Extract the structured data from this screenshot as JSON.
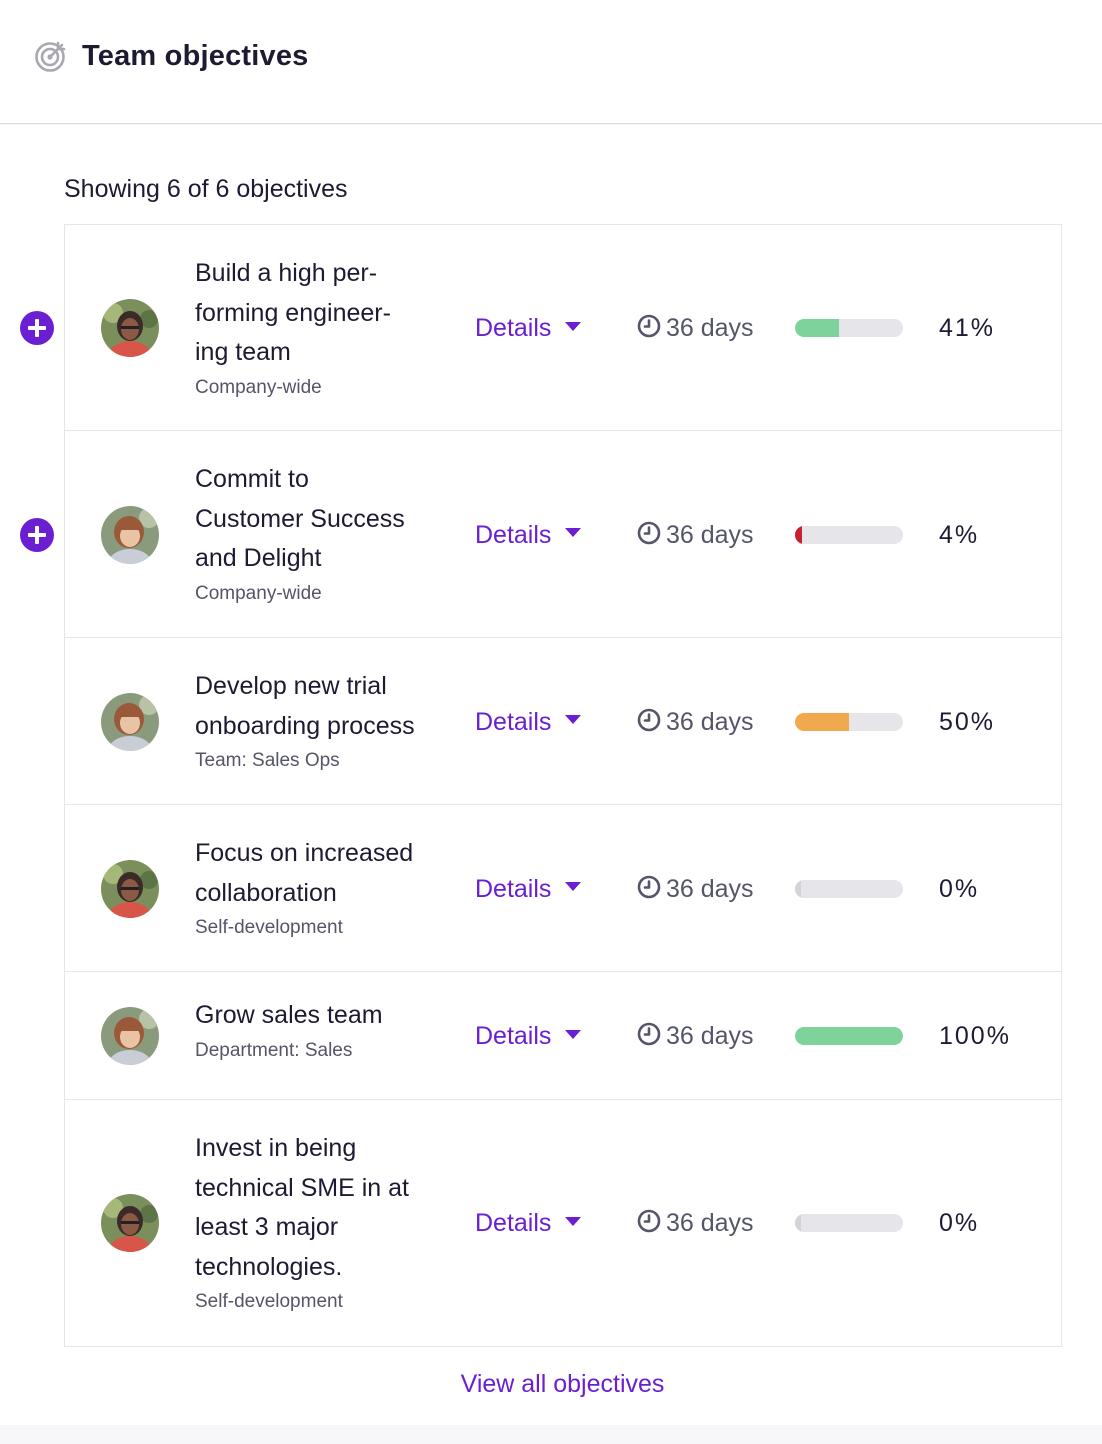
{
  "header": {
    "title": "Team objectives",
    "icon": "target-icon"
  },
  "summary": {
    "showing": "Showing 6 of 6 objectives"
  },
  "objectives": [
    {
      "title_lines": [
        "Build a high per-",
        "forming engineer-",
        "ing team"
      ],
      "scope": "Company-wide",
      "details_label": "Details",
      "due": "36 days",
      "progress": 41,
      "progress_label": "41%",
      "progress_color": "#7dd39a",
      "avatar": "avatar-person-a",
      "has_add": true
    },
    {
      "title_lines": [
        "Commit to",
        "Customer Success",
        "and Delight"
      ],
      "scope": "Company-wide",
      "details_label": "Details",
      "due": "36 days",
      "progress": 4,
      "progress_label": "4%",
      "progress_color": "#c8202e",
      "avatar": "avatar-person-b",
      "has_add": true
    },
    {
      "title_lines": [
        "Develop new trial",
        "onboarding process"
      ],
      "scope": "Team: Sales Ops",
      "details_label": "Details",
      "due": "36 days",
      "progress": 50,
      "progress_label": "50%",
      "progress_color": "#f1a94e",
      "avatar": "avatar-person-b",
      "has_add": false
    },
    {
      "title_lines": [
        "Focus on increased",
        "collaboration"
      ],
      "scope": "Self-development",
      "details_label": "Details",
      "due": "36 days",
      "progress": 0,
      "progress_label": "0%",
      "progress_color": "#d3d3d8",
      "avatar": "avatar-person-a",
      "has_add": false
    },
    {
      "title_lines": [
        "Grow sales team"
      ],
      "scope": "Department: Sales",
      "details_label": "Details",
      "due": "36 days",
      "progress": 100,
      "progress_label": "100%",
      "progress_color": "#7dd39a",
      "avatar": "avatar-person-b",
      "has_add": false
    },
    {
      "title_lines": [
        "Invest in being",
        "technical SME in at",
        "least 3 major",
        "technologies."
      ],
      "scope": "Self-development",
      "details_label": "Details",
      "due": "36 days",
      "progress": 0,
      "progress_label": "0%",
      "progress_color": "#d3d3d8",
      "avatar": "avatar-person-a",
      "has_add": false
    }
  ],
  "footer": {
    "view_all": "View all objectives"
  },
  "colors": {
    "accent": "#6a1fd1",
    "text": "#1c1b33",
    "muted": "#55556a",
    "track": "#e6e6ea"
  }
}
